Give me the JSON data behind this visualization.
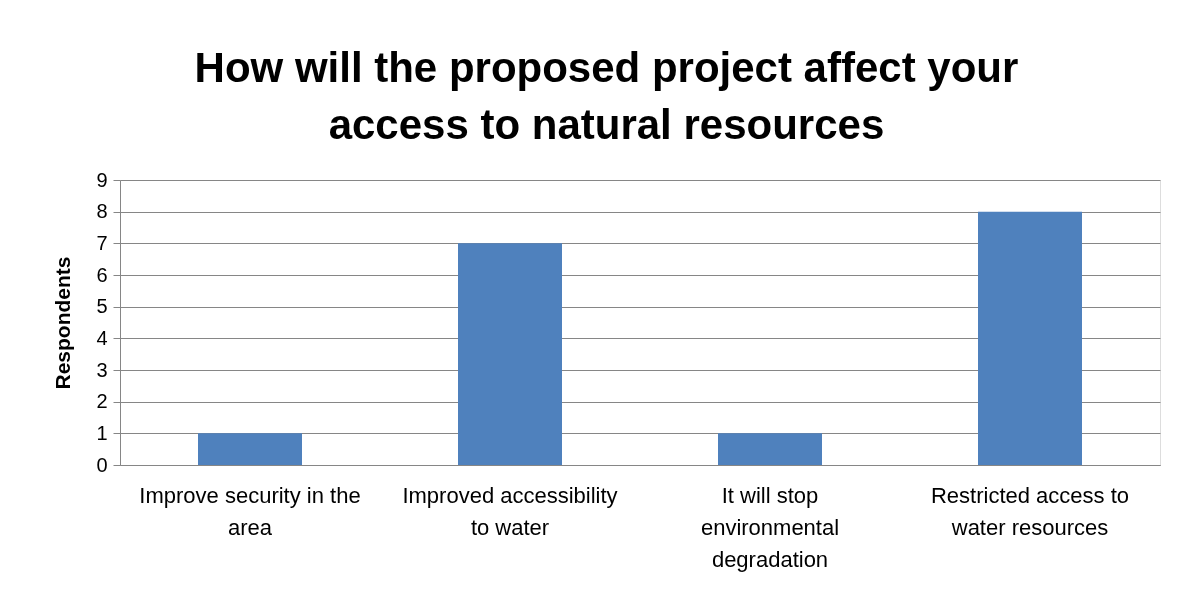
{
  "chart_data": {
    "type": "bar",
    "title": "How will the proposed project affect your access to natural resources",
    "ylabel": "Respondents",
    "categories": [
      "Improve security in the area",
      "Improved accessibility to water",
      "It will stop environmental degradation",
      "Restricted access to water resources"
    ],
    "values": [
      1,
      7,
      1,
      8
    ],
    "color": "#4f81bd",
    "ylim": [
      0,
      9
    ],
    "yticks": [
      0,
      1,
      2,
      3,
      4,
      5,
      6,
      7,
      8,
      9
    ],
    "grid": "y"
  }
}
